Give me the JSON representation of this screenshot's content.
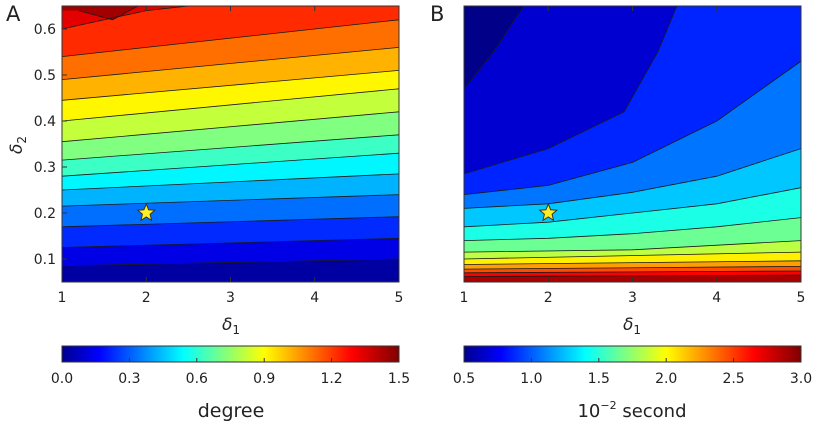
{
  "chart_data": [
    {
      "type": "heatmap",
      "panel": "A",
      "xlabel": "δ1",
      "ylabel": "δ2",
      "xlim": [
        1,
        5
      ],
      "ylim": [
        0.05,
        0.65
      ],
      "xticks": [
        "1",
        "2",
        "3",
        "4",
        "5"
      ],
      "yticks": [
        "0.1",
        "0.2",
        "0.3",
        "0.4",
        "0.5",
        "0.6"
      ],
      "marker": {
        "x": 2,
        "y": 0.2,
        "shape": "star",
        "color": "#FFEF1F"
      },
      "colorbar": {
        "min": 0.0,
        "max": 1.5,
        "ticks": [
          "0.0",
          "0.3",
          "0.6",
          "0.9",
          "1.2",
          "1.5"
        ],
        "title": "degree"
      },
      "levels": [
        0.1,
        0.2,
        0.3,
        0.4,
        0.5,
        0.6,
        0.7,
        0.8,
        0.9,
        1.0,
        1.1,
        1.2,
        1.3,
        1.4
      ],
      "contours": [
        {
          "level": 0.1,
          "points": [
            [
              1,
              0.085
            ],
            [
              5,
              0.1
            ]
          ]
        },
        {
          "level": 0.2,
          "points": [
            [
              1,
              0.125
            ],
            [
              5,
              0.145
            ]
          ]
        },
        {
          "level": 0.3,
          "points": [
            [
              1,
              0.17
            ],
            [
              5,
              0.192
            ]
          ]
        },
        {
          "level": 0.4,
          "points": [
            [
              1,
              0.215
            ],
            [
              5,
              0.24
            ]
          ]
        },
        {
          "level": 0.5,
          "points": [
            [
              1,
              0.25
            ],
            [
              5,
              0.285
            ]
          ]
        },
        {
          "level": 0.6,
          "points": [
            [
              1,
              0.28
            ],
            [
              5,
              0.33
            ]
          ]
        },
        {
          "level": 0.7,
          "points": [
            [
              1,
              0.315
            ],
            [
              5,
              0.37
            ]
          ]
        },
        {
          "level": 0.8,
          "points": [
            [
              1,
              0.355
            ],
            [
              5,
              0.42
            ]
          ]
        },
        {
          "level": 0.9,
          "points": [
            [
              1,
              0.4
            ],
            [
              5,
              0.47
            ]
          ]
        },
        {
          "level": 1.0,
          "points": [
            [
              1,
              0.445
            ],
            [
              5,
              0.51
            ]
          ]
        },
        {
          "level": 1.1,
          "points": [
            [
              1,
              0.49
            ],
            [
              5,
              0.56
            ]
          ]
        },
        {
          "level": 1.2,
          "points": [
            [
              1,
              0.54
            ],
            [
              5,
              0.62
            ]
          ]
        },
        {
          "level": 1.3,
          "points": [
            [
              1,
              0.6
            ],
            [
              2,
              0.64
            ],
            [
              3,
              0.66
            ]
          ]
        },
        {
          "level": 1.4,
          "points": [
            [
              1.2,
              0.64
            ],
            [
              1.6,
              0.62
            ],
            [
              2,
              0.66
            ]
          ]
        }
      ]
    },
    {
      "type": "heatmap",
      "panel": "B",
      "xlabel": "δ1",
      "ylabel": "",
      "xlim": [
        1,
        5
      ],
      "ylim": [
        0.05,
        0.65
      ],
      "xticks": [
        "1",
        "2",
        "3",
        "4",
        "5"
      ],
      "yticks": [],
      "marker": {
        "x": 2,
        "y": 0.2,
        "shape": "star",
        "color": "#FFEF1F"
      },
      "colorbar": {
        "min": 0.5,
        "max": 3.0,
        "ticks": [
          "0.5",
          "1.0",
          "1.5",
          "2.0",
          "2.5",
          "3.0"
        ],
        "title_base": "10",
        "title_exp": "−2",
        "title_rest": " second"
      },
      "levels": [
        0.6,
        0.8,
        1.0,
        1.2,
        1.4,
        1.6,
        1.8,
        2.0,
        2.2,
        2.4,
        2.6,
        2.8
      ],
      "contours": [
        {
          "level": 0.6,
          "points": [
            [
              1,
              0.47
            ],
            [
              1.35,
              0.55
            ],
            [
              1.6,
              0.62
            ],
            [
              1.75,
              0.66
            ]
          ]
        },
        {
          "level": 0.8,
          "points": [
            [
              1,
              0.285
            ],
            [
              2,
              0.34
            ],
            [
              2.9,
              0.42
            ],
            [
              3.3,
              0.55
            ],
            [
              3.55,
              0.66
            ]
          ]
        },
        {
          "level": 1.0,
          "points": [
            [
              1,
              0.24
            ],
            [
              2,
              0.26
            ],
            [
              3,
              0.31
            ],
            [
              4,
              0.4
            ],
            [
              5,
              0.53
            ]
          ]
        },
        {
          "level": 1.2,
          "points": [
            [
              1,
              0.21
            ],
            [
              2,
              0.22
            ],
            [
              3,
              0.245
            ],
            [
              4,
              0.28
            ],
            [
              5,
              0.34
            ]
          ]
        },
        {
          "level": 1.4,
          "points": [
            [
              1,
              0.17
            ],
            [
              2,
              0.18
            ],
            [
              3,
              0.2
            ],
            [
              4,
              0.22
            ],
            [
              5,
              0.255
            ]
          ]
        },
        {
          "level": 1.6,
          "points": [
            [
              1,
              0.14
            ],
            [
              2,
              0.145
            ],
            [
              3,
              0.155
            ],
            [
              4,
              0.17
            ],
            [
              5,
              0.19
            ]
          ]
        },
        {
          "level": 1.8,
          "points": [
            [
              1,
              0.115
            ],
            [
              3,
              0.12
            ],
            [
              5,
              0.14
            ]
          ]
        },
        {
          "level": 2.0,
          "points": [
            [
              1,
              0.1
            ],
            [
              5,
              0.115
            ]
          ]
        },
        {
          "level": 2.2,
          "points": [
            [
              1,
              0.088
            ],
            [
              5,
              0.096
            ]
          ]
        },
        {
          "level": 2.4,
          "points": [
            [
              1,
              0.078
            ],
            [
              5,
              0.084
            ]
          ]
        },
        {
          "level": 2.6,
          "points": [
            [
              1,
              0.07
            ],
            [
              5,
              0.074
            ]
          ]
        },
        {
          "level": 2.8,
          "points": [
            [
              1,
              0.062
            ],
            [
              5,
              0.065
            ]
          ]
        }
      ]
    }
  ]
}
